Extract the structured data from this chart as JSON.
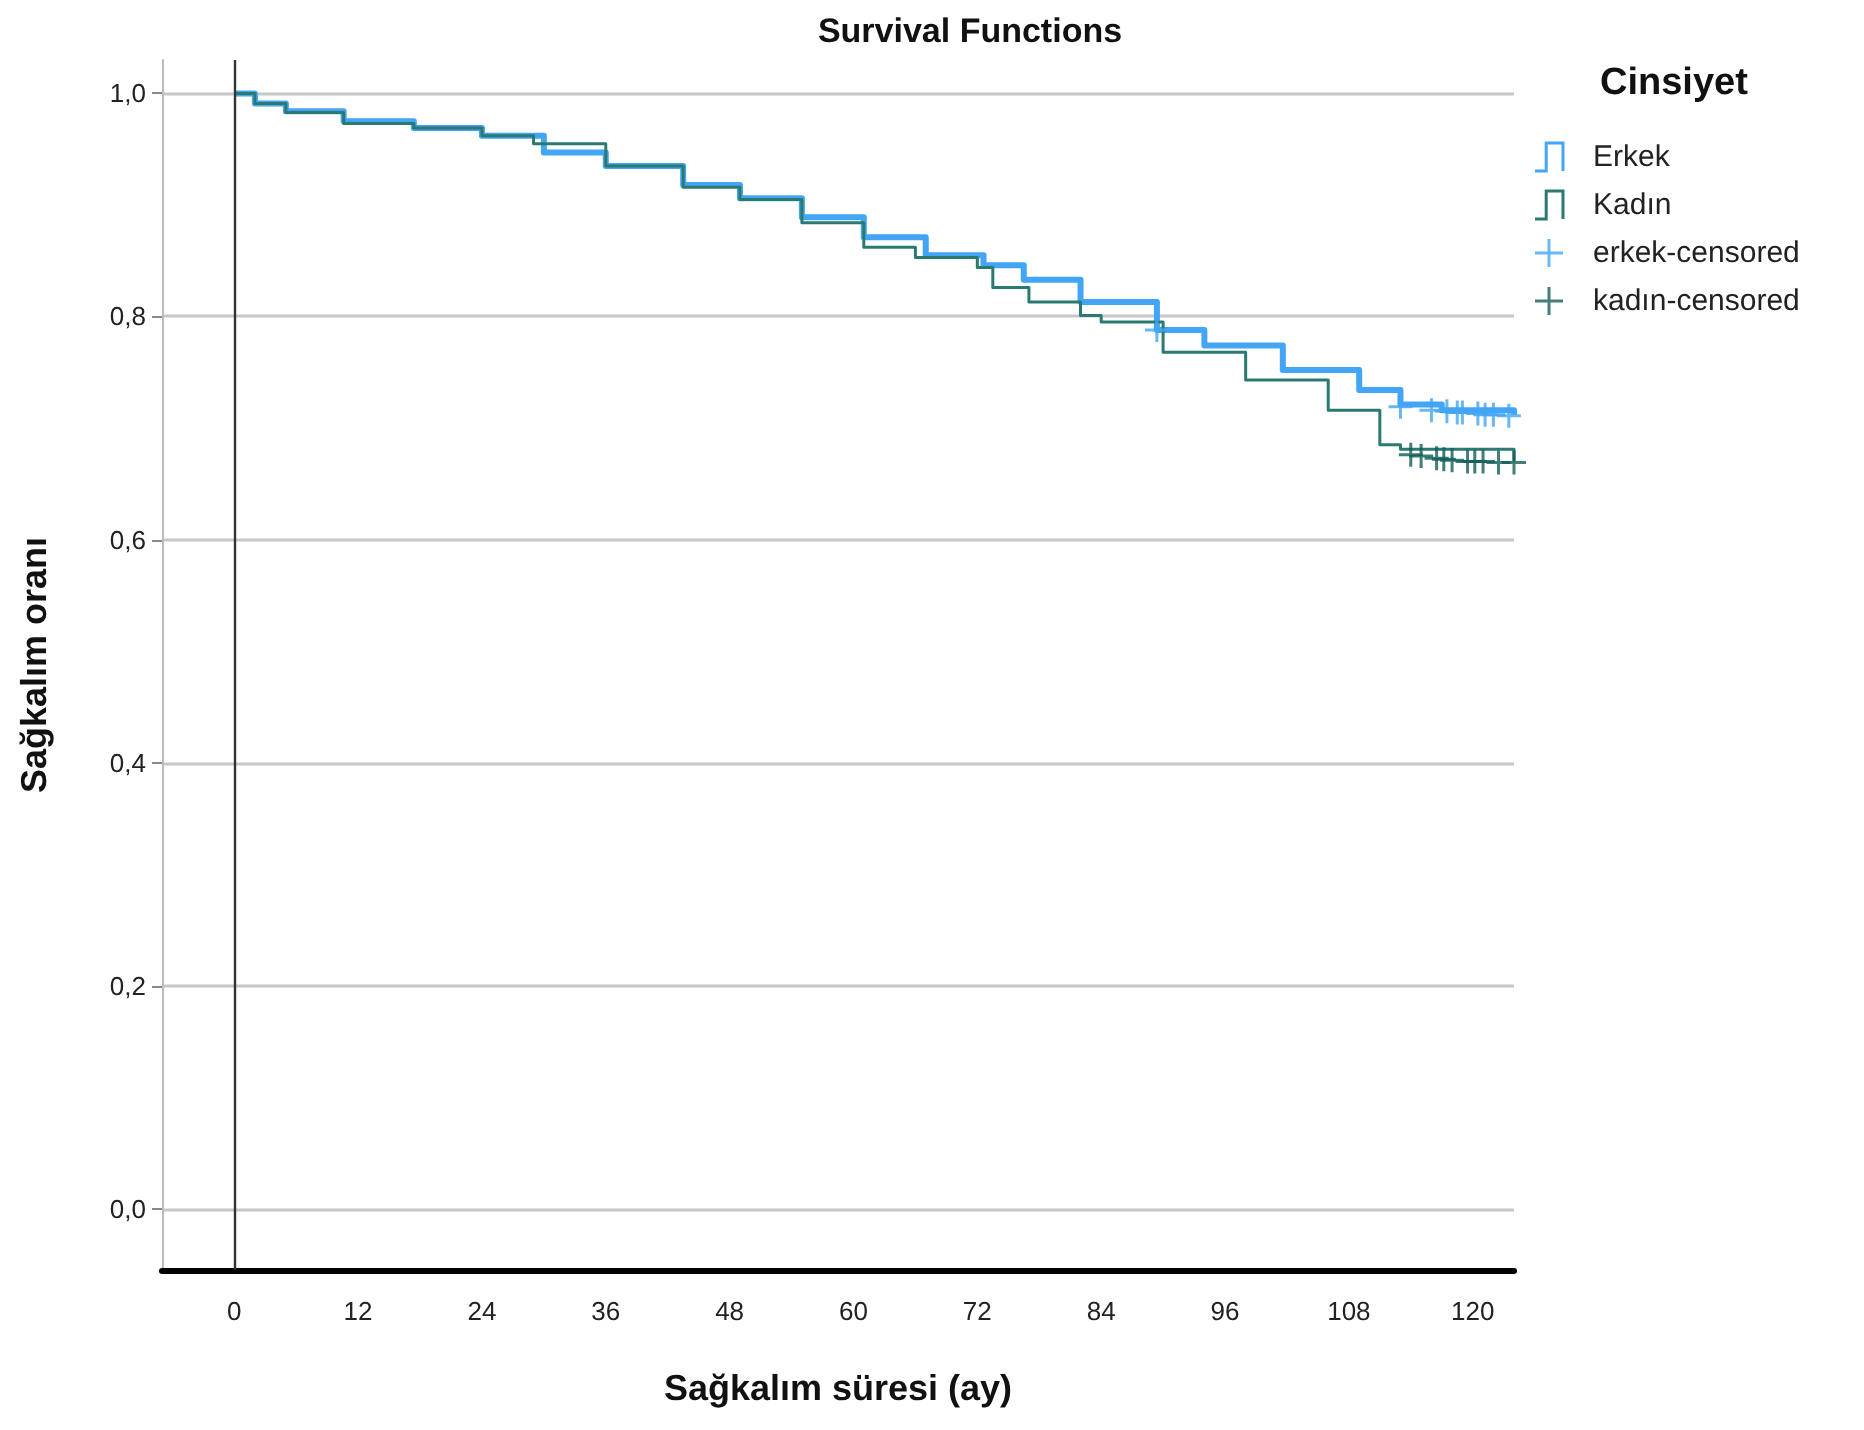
{
  "chart_data": {
    "type": "step",
    "title": "Survival Functions",
    "xlabel": "Sağkalım süresi (ay)",
    "ylabel": "Sağkalım oranı",
    "legend_title": "Cinsiyet",
    "legend": "top right",
    "grid": "y",
    "xlim": [
      -7,
      124
    ],
    "xticks": [
      0,
      12,
      24,
      36,
      48,
      60,
      72,
      84,
      96,
      108,
      120
    ],
    "ylim": [
      -0.055,
      1.03
    ],
    "yticks": [
      {
        "value": 0,
        "label": "0,0"
      },
      {
        "value": 0.2,
        "label": "0,2"
      },
      {
        "value": 0.4,
        "label": "0,4"
      },
      {
        "value": 0.6,
        "label": "0,6"
      },
      {
        "value": 0.8,
        "label": "0,8"
      },
      {
        "value": 1,
        "label": "1,0"
      }
    ],
    "ref_lines": [
      {
        "axis": "x",
        "value": 0,
        "color": "#333333"
      }
    ],
    "series": [
      {
        "name": "Erkek",
        "color": "#42a5f5",
        "x": [
          0,
          2,
          5,
          10.6,
          17.4,
          24,
          30,
          36,
          43.5,
          49,
          55,
          61,
          67,
          72.6,
          76.5,
          82,
          89.4,
          94,
          101.6,
          109,
          113,
          117,
          124
        ],
        "values": [
          1.0,
          0.991,
          0.984,
          0.975,
          0.969,
          0.962,
          0.947,
          0.935,
          0.918,
          0.906,
          0.889,
          0.871,
          0.855,
          0.846,
          0.833,
          0.813,
          0.788,
          0.774,
          0.752,
          0.734,
          0.721,
          0.716,
          0.712
        ]
      },
      {
        "name": "Kadın",
        "color": "#2b7a72",
        "x": [
          0,
          2,
          5,
          10.6,
          17.4,
          24,
          29,
          36,
          43.5,
          49,
          55,
          61,
          66,
          72,
          73.5,
          77,
          82,
          84,
          90,
          98,
          106,
          111,
          113,
          124
        ],
        "values": [
          1.0,
          0.991,
          0.983,
          0.973,
          0.969,
          0.962,
          0.955,
          0.935,
          0.916,
          0.905,
          0.884,
          0.862,
          0.853,
          0.844,
          0.826,
          0.813,
          0.801,
          0.795,
          0.768,
          0.743,
          0.716,
          0.685,
          0.681,
          0.67
        ]
      },
      {
        "name": "erkek-censored",
        "type": "scatter",
        "marker": "cross",
        "color": "#42a5f5",
        "x": [
          89.4,
          113,
          116,
          117.5,
          119,
          120.5,
          122,
          123.5,
          118.5,
          121.2
        ],
        "values": [
          0.788,
          0.719,
          0.716,
          0.715,
          0.714,
          0.713,
          0.712,
          0.711,
          0.714,
          0.712
        ]
      },
      {
        "name": "kadın-censored",
        "type": "scatter",
        "marker": "cross",
        "color": "#115e57",
        "x": [
          114,
          115,
          116.5,
          118,
          119.5,
          121,
          122.5,
          124,
          117.2,
          120.2
        ],
        "values": [
          0.676,
          0.675,
          0.673,
          0.671,
          0.67,
          0.67,
          0.669,
          0.669,
          0.672,
          0.67
        ]
      }
    ]
  }
}
